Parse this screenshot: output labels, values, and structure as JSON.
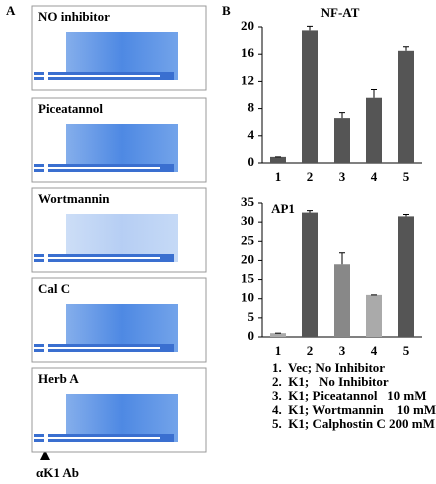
{
  "panel_a": {
    "label": "A",
    "plots": [
      "NO inhibitor",
      "Piceatannol",
      "Wortmannin",
      "Cal C",
      "Herb A"
    ],
    "arrow_label": "αK1 Ab"
  },
  "panel_b": {
    "label": "B",
    "notes": [
      "1.  Vec; No Inhibitor",
      "2.  K1;   No Inhibitor",
      "3.  K1; Piceatannol   10 mM",
      "4.  K1; Wortmannin    10 mM",
      "5.  K1; Calphostin C 200 mM"
    ]
  },
  "chart_data": [
    {
      "type": "bar",
      "title": "NF-AT",
      "categories": [
        "1",
        "2",
        "3",
        "4",
        "5"
      ],
      "values": [
        0.9,
        19.5,
        6.6,
        9.6,
        16.5
      ],
      "errors": [
        0,
        0.6,
        0.8,
        1.2,
        0.6
      ],
      "colors": [
        "#555555",
        "#555555",
        "#555555",
        "#555555",
        "#555555"
      ],
      "ylim": [
        0,
        20
      ],
      "yticks": [
        0,
        4,
        8,
        12,
        16,
        20
      ]
    },
    {
      "type": "bar",
      "title": "AP1",
      "categories": [
        "1",
        "2",
        "3",
        "4",
        "5"
      ],
      "values": [
        1,
        32.5,
        19,
        11,
        31.5
      ],
      "errors": [
        0,
        0.5,
        3,
        0,
        0.5
      ],
      "colors": [
        "#aaaaaa",
        "#555555",
        "#888888",
        "#aaaaaa",
        "#555555"
      ],
      "ylim": [
        0,
        35
      ],
      "yticks": [
        0,
        5,
        10,
        15,
        20,
        25,
        30,
        35
      ]
    }
  ]
}
